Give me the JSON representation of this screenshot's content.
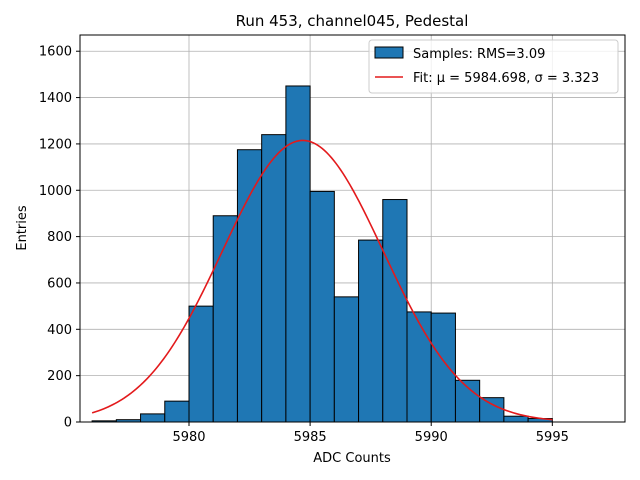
{
  "chart_data": {
    "type": "bar",
    "title": "Run 453, channel045, Pedestal",
    "xlabel": "ADC Counts",
    "ylabel": "Entries",
    "xlim": [
      5975.5,
      5998.0
    ],
    "ylim": [
      0,
      1670
    ],
    "grid": true,
    "xticks": [
      5980,
      5985,
      5990,
      5995
    ],
    "yticks": [
      0,
      200,
      400,
      600,
      800,
      1000,
      1200,
      1400,
      1600
    ],
    "bar_color": "#1f77b4",
    "fit_color": "#e31a1c",
    "bins": {
      "edges": [
        5976,
        5977,
        5978,
        5979,
        5980,
        5981,
        5982,
        5983,
        5984,
        5985,
        5986,
        5987,
        5988,
        5989,
        5990,
        5991,
        5992,
        5993,
        5994,
        5995
      ],
      "counts": [
        5,
        10,
        35,
        90,
        500,
        890,
        1175,
        1240,
        1450,
        995,
        540,
        785,
        960,
        475,
        470,
        180,
        105,
        25,
        15
      ]
    },
    "fit": {
      "mu": 5984.698,
      "sigma": 3.323,
      "amplitude": 1215,
      "x_range": [
        5976,
        5995
      ]
    },
    "legend": {
      "position": "top-right",
      "entries": [
        {
          "label": "Samples: RMS=3.09",
          "kind": "patch"
        },
        {
          "label": "Fit: μ = 5984.698, σ = 3.323",
          "kind": "line"
        }
      ]
    }
  }
}
